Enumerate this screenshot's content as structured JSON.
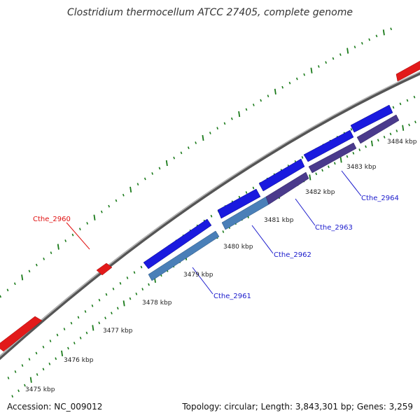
{
  "title": "Clostridium thermocellum ATCC 27405, complete genome",
  "footer": {
    "accession": "Accession: NC_009012",
    "summary": "Topology: circular; Length: 3,843,301 bp; Genes: 3,259"
  },
  "colors": {
    "backbone": "#8c8c8c",
    "tick": "#1a7a1a",
    "forward_feature": "#e21a1a",
    "reverse_gene": "#1a1adf",
    "reverse_cds": "#4a7fb8",
    "reverse_cds_alt": "#4a3a8c",
    "label_red": "#e01010",
    "label_blue": "#1a1acc"
  },
  "scale_labels": [
    "3475 kbp",
    "3476 kbp",
    "3477 kbp",
    "3478 kbp",
    "3479 kbp",
    "3480 kbp",
    "3481 kbp",
    "3482 kbp",
    "3483 kbp",
    "3484 kbp"
  ],
  "gene_labels": [
    {
      "name": "Cthe_2960",
      "color": "red"
    },
    {
      "name": "Cthe_2961",
      "color": "blue"
    },
    {
      "name": "Cthe_2962",
      "color": "blue"
    },
    {
      "name": "Cthe_2963",
      "color": "blue"
    },
    {
      "name": "Cthe_2964",
      "color": "blue"
    }
  ]
}
